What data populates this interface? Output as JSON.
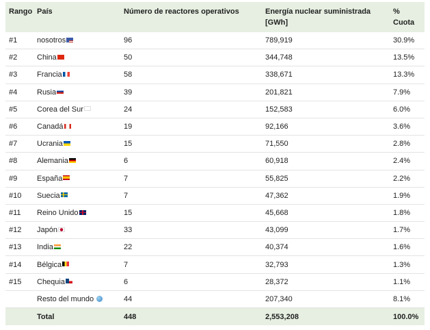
{
  "headers": {
    "rank": "Rango",
    "country": "País",
    "reactors": "Número de reactores operativos",
    "energy_line1": "Energía nuclear suministrada",
    "energy_line2": "[GWh]",
    "share_line1": "%",
    "share_line2": "Cuota"
  },
  "rows": [
    {
      "rank": "#1",
      "country": "nosotros",
      "flag": "us-flag-icon",
      "reactors": "96",
      "energy": "789,919",
      "share": "30.9%"
    },
    {
      "rank": "#2",
      "country": "China",
      "flag": "cn-flag-icon",
      "reactors": "50",
      "energy": "344,748",
      "share": "13.5%"
    },
    {
      "rank": "#3",
      "country": "Francia",
      "flag": "fr-flag-icon",
      "reactors": "58",
      "energy": "338,671",
      "share": "13.3%"
    },
    {
      "rank": "#4",
      "country": "Rusia",
      "flag": "ru-flag-icon",
      "reactors": "39",
      "energy": "201,821",
      "share": "7.9%"
    },
    {
      "rank": "#5",
      "country": "Corea del Sur",
      "flag": "kr-flag-icon",
      "reactors": "24",
      "energy": "152,583",
      "share": "6.0%"
    },
    {
      "rank": "#6",
      "country": "Canadá",
      "flag": "ca-flag-icon",
      "reactors": "19",
      "energy": "92,166",
      "share": "3.6%"
    },
    {
      "rank": "#7",
      "country": "Ucrania",
      "flag": "ua-flag-icon",
      "reactors": "15",
      "energy": "71,550",
      "share": "2.8%"
    },
    {
      "rank": "#8",
      "country": "Alemania",
      "flag": "de-flag-icon",
      "reactors": "6",
      "energy": "60,918",
      "share": "2.4%"
    },
    {
      "rank": "#9",
      "country": "España",
      "flag": "es-flag-icon",
      "reactors": "7",
      "energy": "55,825",
      "share": "2.2%"
    },
    {
      "rank": "#10",
      "country": "Suecia",
      "flag": "se-flag-icon",
      "reactors": "7",
      "energy": "47,362",
      "share": "1.9%"
    },
    {
      "rank": "#11",
      "country": "Reino Unido",
      "flag": "gb-flag-icon",
      "reactors": "15",
      "energy": "45,668",
      "share": "1.8%"
    },
    {
      "rank": "#12",
      "country": "Japón",
      "flag": "jp-flag-icon",
      "reactors": "33",
      "energy": "43,099",
      "share": "1.7%"
    },
    {
      "rank": "#13",
      "country": "India",
      "flag": "in-flag-icon",
      "reactors": "22",
      "energy": "40,374",
      "share": "1.6%"
    },
    {
      "rank": "#14",
      "country": "Bélgica",
      "flag": "be-flag-icon",
      "reactors": "7",
      "energy": "32,793",
      "share": "1.3%"
    },
    {
      "rank": "#15",
      "country": "Chequia",
      "flag": "cz-flag-icon",
      "reactors": "6",
      "energy": "28,372",
      "share": "1.1%"
    },
    {
      "rank": "",
      "country": "Resto del mundo",
      "flag": "globe-icon",
      "reactors": "44",
      "energy": "207,340",
      "share": "8.1%"
    }
  ],
  "total": {
    "label": "Total",
    "reactors": "448",
    "energy": "2,553,208",
    "share": "100.0%"
  },
  "colors": {
    "header_bg": "#e6efe1",
    "row_border": "#e3e3e3"
  }
}
